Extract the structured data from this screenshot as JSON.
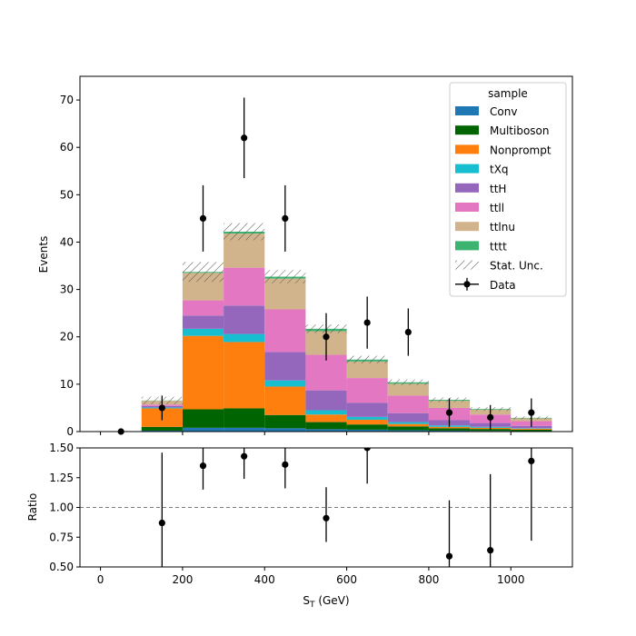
{
  "chart_data": [
    {
      "type": "bar",
      "panel": "main",
      "stacked": true,
      "ylabel": "Events",
      "ylim": [
        0,
        75
      ],
      "yticks": [
        0,
        10,
        20,
        30,
        40,
        50,
        60,
        70
      ],
      "xlim": [
        -50,
        1150
      ],
      "bin_edges": [
        0,
        100,
        200,
        300,
        400,
        500,
        600,
        700,
        800,
        900,
        1000,
        1100
      ],
      "series": [
        {
          "name": "Conv",
          "color": "#1f77b4",
          "values": [
            0,
            0.2,
            0.8,
            0.8,
            0.7,
            0.5,
            0.4,
            0.3,
            0.2,
            0.15,
            0.1
          ]
        },
        {
          "name": "Multiboson",
          "color": "#006400",
          "values": [
            0,
            0.8,
            3.9,
            4.1,
            2.8,
            1.5,
            1.1,
            0.8,
            0.5,
            0.4,
            0.3
          ]
        },
        {
          "name": "Nonprompt",
          "color": "#ff7f0e",
          "values": [
            0,
            3.9,
            15.5,
            14.0,
            6.0,
            1.6,
            1.0,
            0.5,
            0.3,
            0.25,
            0.2
          ]
        },
        {
          "name": "tXq",
          "color": "#17becf",
          "values": [
            0,
            0.2,
            1.5,
            1.7,
            1.3,
            0.9,
            0.6,
            0.4,
            0.3,
            0.2,
            0.1
          ]
        },
        {
          "name": "ttH",
          "color": "#9467bd",
          "values": [
            0,
            0.3,
            2.8,
            6.0,
            6.0,
            4.2,
            3.0,
            1.9,
            1.1,
            0.8,
            0.5
          ]
        },
        {
          "name": "ttll",
          "color": "#e377c2",
          "values": [
            0,
            0.3,
            3.2,
            8.0,
            9.0,
            7.5,
            5.2,
            3.7,
            2.6,
            1.8,
            1.0
          ]
        },
        {
          "name": "ttlnu",
          "color": "#d2b48c",
          "values": [
            0,
            0.8,
            5.8,
            7.2,
            6.5,
            5.0,
            3.5,
            2.5,
            1.5,
            1.0,
            0.6
          ]
        },
        {
          "name": "tttt",
          "color": "#3cb371",
          "values": [
            0,
            0.05,
            0.2,
            0.4,
            0.4,
            0.5,
            0.4,
            0.3,
            0.2,
            0.15,
            0.1
          ]
        }
      ],
      "stat_unc": [
        0,
        0.8,
        2.1,
        1.8,
        1.4,
        0.9,
        0.8,
        0.6,
        0.5,
        0.4,
        0.3
      ],
      "stat_unc_label": "Stat. Unc.",
      "data": {
        "name": "Data",
        "x": [
          50,
          150,
          250,
          350,
          450,
          550,
          650,
          750,
          850,
          950,
          1050
        ],
        "y": [
          0,
          5,
          45,
          62,
          45,
          20,
          23,
          21,
          4,
          3,
          4
        ],
        "yerr": [
          0,
          2.6,
          7.0,
          8.5,
          7.0,
          5.0,
          5.5,
          5.0,
          3.0,
          2.6,
          3.0
        ]
      },
      "legend": {
        "title": "sample",
        "placement": "top-right"
      }
    },
    {
      "type": "scatter",
      "panel": "ratio",
      "xlabel": "S_T (GeV)",
      "ylabel": "Ratio",
      "ylim": [
        0.5,
        1.5
      ],
      "yticks": [
        "0.50",
        "0.75",
        "1.00",
        "1.25",
        "1.50"
      ],
      "xticks": [
        0,
        200,
        400,
        600,
        800,
        1000
      ],
      "reference_line": 1.0,
      "x": [
        150,
        250,
        350,
        450,
        550,
        650,
        850,
        950,
        1050
      ],
      "y": [
        0.87,
        1.35,
        1.43,
        1.36,
        0.91,
        1.5,
        0.59,
        0.64,
        1.39
      ],
      "yerr_low": [
        0.45,
        0.2,
        0.19,
        0.2,
        0.2,
        0.3,
        0.47,
        0.55,
        0.67
      ],
      "yerr_high": [
        0.59,
        0.2,
        0.19,
        0.2,
        0.26,
        0.3,
        0.47,
        0.64,
        0.67
      ]
    }
  ]
}
